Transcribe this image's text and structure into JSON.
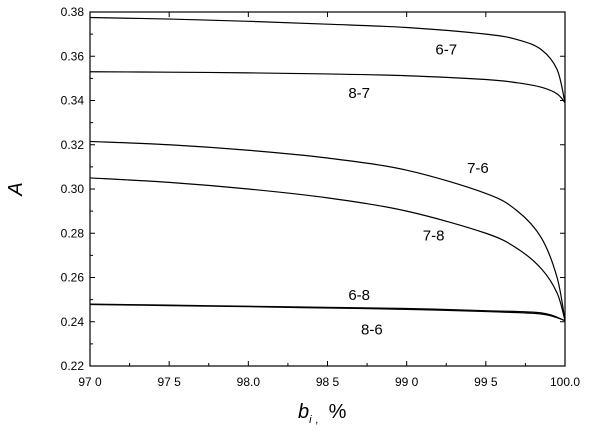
{
  "chart_data": {
    "type": "line",
    "title": "",
    "xlabel": "b",
    "xlabel_subscript": "i",
    "xlabel_separator": ",",
    "xlabel_unit": "%",
    "ylabel": "A",
    "xlim": [
      97.0,
      100.0
    ],
    "ylim": [
      0.22,
      0.38
    ],
    "x_ticks": [
      97.0,
      97.5,
      98.0,
      98.5,
      99.0,
      99.5,
      100.0
    ],
    "x_tick_labels": [
      "97 0",
      "97 5",
      "98.0",
      "98 5",
      "99 0",
      "99 5",
      "100.0"
    ],
    "y_ticks": [
      0.22,
      0.24,
      0.26,
      0.28,
      0.3,
      0.32,
      0.34,
      0.36,
      0.38
    ],
    "y_tick_labels": [
      "0.22",
      "0.24",
      "0.26",
      "0.28",
      "0.30",
      "0.32",
      "0.34",
      "0.36",
      "0.38"
    ],
    "grid": false,
    "legend": "none",
    "series": [
      {
        "label": "6-7",
        "x": [
          97.0,
          97.5,
          98.0,
          98.5,
          99.0,
          99.5,
          99.7,
          99.85,
          99.95,
          100.0
        ],
        "y": [
          0.3775,
          0.3768,
          0.3758,
          0.3745,
          0.373,
          0.37,
          0.3675,
          0.363,
          0.354,
          0.339
        ]
      },
      {
        "label": "8-7",
        "x": [
          97.0,
          97.5,
          98.0,
          98.5,
          99.0,
          99.5,
          99.7,
          99.85,
          99.95,
          100.0
        ],
        "y": [
          0.353,
          0.3528,
          0.3525,
          0.352,
          0.3512,
          0.3495,
          0.348,
          0.346,
          0.343,
          0.339
        ]
      },
      {
        "label": "7-6",
        "x": [
          97.0,
          97.5,
          98.0,
          98.5,
          99.0,
          99.5,
          99.7,
          99.85,
          99.95,
          100.0
        ],
        "y": [
          0.3215,
          0.32,
          0.3175,
          0.314,
          0.3085,
          0.298,
          0.29,
          0.278,
          0.26,
          0.2405
        ]
      },
      {
        "label": "7-8",
        "x": [
          97.0,
          97.5,
          98.0,
          98.5,
          99.0,
          99.5,
          99.7,
          99.85,
          99.95,
          100.0
        ],
        "y": [
          0.305,
          0.303,
          0.3,
          0.296,
          0.29,
          0.28,
          0.273,
          0.264,
          0.253,
          0.2405
        ]
      },
      {
        "label": "6-8",
        "x": [
          97.0,
          97.5,
          98.0,
          98.5,
          99.0,
          99.5,
          99.85,
          100.0
        ],
        "y": [
          0.248,
          0.2475,
          0.247,
          0.2465,
          0.246,
          0.245,
          0.244,
          0.2405
        ]
      },
      {
        "label": "8-6",
        "x": [
          97.0,
          97.5,
          98.0,
          98.5,
          99.0,
          99.5,
          99.85,
          100.0
        ],
        "y": [
          0.2478,
          0.2473,
          0.2468,
          0.2462,
          0.2456,
          0.2446,
          0.2435,
          0.2405
        ]
      }
    ],
    "curve_labels": [
      {
        "text": "6-7",
        "x": 99.25,
        "y": 0.363
      },
      {
        "text": "8-7",
        "x": 98.7,
        "y": 0.3435
      },
      {
        "text": "7-6",
        "x": 99.45,
        "y": 0.3095
      },
      {
        "text": "7-8",
        "x": 99.17,
        "y": 0.279
      },
      {
        "text": "6-8",
        "x": 98.7,
        "y": 0.252
      },
      {
        "text": "8-6",
        "x": 98.78,
        "y": 0.2365
      }
    ]
  }
}
